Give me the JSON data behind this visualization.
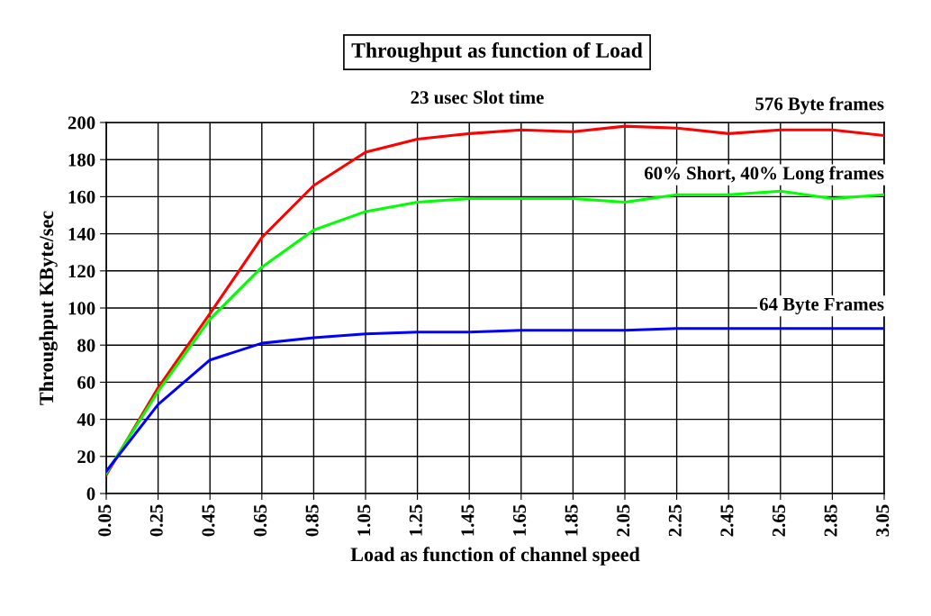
{
  "chart_data": {
    "type": "line",
    "title": "Throughput as function of Load",
    "xlabel": "Load as function of channel speed",
    "ylabel": "Throughput KByte/sec",
    "x": [
      0.05,
      0.25,
      0.45,
      0.65,
      0.85,
      1.05,
      1.25,
      1.45,
      1.65,
      1.85,
      2.05,
      2.25,
      2.45,
      2.65,
      2.85,
      3.05
    ],
    "xlim": [
      0.05,
      3.05
    ],
    "xticks": [
      {
        "value": 0.05,
        "label": "0.05"
      },
      {
        "value": 0.25,
        "label": "0.25"
      },
      {
        "value": 0.45,
        "label": "0.45"
      },
      {
        "value": 0.65,
        "label": "0.65"
      },
      {
        "value": 0.85,
        "label": "0.85"
      },
      {
        "value": 1.05,
        "label": "1.05"
      },
      {
        "value": 1.25,
        "label": "1.25"
      },
      {
        "value": 1.45,
        "label": "1.45"
      },
      {
        "value": 1.65,
        "label": "1.65"
      },
      {
        "value": 1.85,
        "label": "1.85"
      },
      {
        "value": 2.05,
        "label": "2.05"
      },
      {
        "value": 2.25,
        "label": "2.25"
      },
      {
        "value": 2.45,
        "label": "2.45"
      },
      {
        "value": 2.65,
        "label": "2.65"
      },
      {
        "value": 2.85,
        "label": "2.85"
      },
      {
        "value": 3.05,
        "label": "3.05"
      }
    ],
    "ylim": [
      0,
      200
    ],
    "yticks": [
      0,
      20,
      40,
      60,
      80,
      100,
      120,
      140,
      160,
      180,
      200
    ],
    "grid": true,
    "legend": false,
    "marker": "none",
    "line_style": "solid",
    "annotations": [
      "23 usec Slot time"
    ],
    "series": [
      {
        "name": "576 Byte frames",
        "color": "#ff0000",
        "values": [
          10,
          57,
          97,
          138,
          166,
          184,
          191,
          194,
          196,
          195,
          198,
          197,
          194,
          196,
          196,
          193
        ]
      },
      {
        "name": "60% Short, 40% Long frames",
        "color": "#00ff00",
        "values": [
          11,
          55,
          94,
          122,
          142,
          152,
          157,
          159,
          159,
          159,
          157,
          161,
          161,
          163,
          159,
          161
        ]
      },
      {
        "name": "64 Byte Frames",
        "color": "#0000ff",
        "values": [
          12,
          48,
          72,
          81,
          84,
          86,
          87,
          87,
          88,
          88,
          88,
          89,
          89,
          89,
          89,
          89
        ]
      }
    ]
  }
}
